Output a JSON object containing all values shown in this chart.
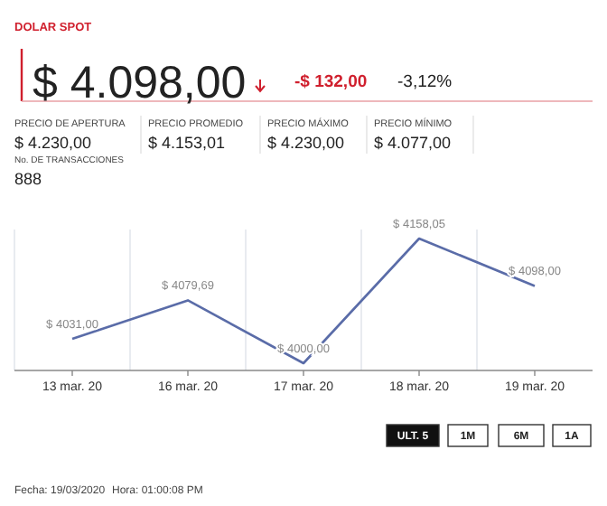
{
  "chart_data": {
    "type": "line",
    "title": "DOLAR SPOT",
    "categories": [
      "13 mar. 20",
      "16 mar. 20",
      "17 mar. 20",
      "18 mar. 20",
      "19 mar. 20"
    ],
    "series": [
      {
        "color": "#5a6ca8",
        "values": [
          4031,
          4079.69,
          4000,
          4158.05,
          4098
        ],
        "value_labels": [
          "$ 4031,00",
          "$ 4079,69",
          "$ 4000,00",
          "$ 4158,05",
          "$ 4098,00"
        ]
      }
    ],
    "grid": "x",
    "tick_labels": "x",
    "marker": "none",
    "line_style": "solid",
    "annotations": [
      "$ 4.098,00",
      "-$ 132,00",
      "-3,12%",
      "PRECIO DE APERTURA",
      "$ 4.230,00",
      "No. DE TRANSACCIONES",
      "888",
      "PRECIO PROMEDIO",
      "$ 4.153,01",
      "PRECIO MÁXIMO",
      "$ 4.230,00",
      "PRECIO MÍNIMO",
      "$ 4.077,00",
      "ULT. 5",
      "1M",
      "6M",
      "1A",
      "Fecha: 19/03/2020",
      "Hora: 01:00:08 PM"
    ]
  }
}
